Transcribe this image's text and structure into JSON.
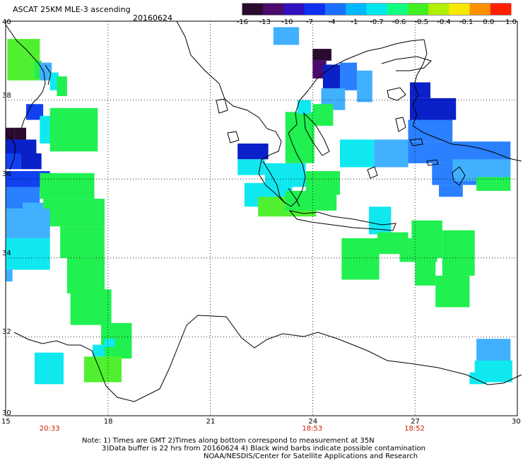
{
  "header": {
    "product": "ASCAT 25KM MLE-3 ascending",
    "date": "20160624"
  },
  "colorbar": {
    "ticks": [
      "-16",
      "-13",
      "-10",
      "-7",
      "-4",
      "-1",
      "-0.7",
      "-0.6",
      "-0.5",
      "-0.4",
      "-0.1",
      "0.0",
      "1.0"
    ],
    "colors": [
      "#2a0a2e",
      "#4b0a6e",
      "#3010c0",
      "#1030f0",
      "#1a70ff",
      "#00b8ff",
      "#00e8ee",
      "#10ff80",
      "#40f020",
      "#b0f000",
      "#f8e800",
      "#ff9000",
      "#ff2000"
    ]
  },
  "axes": {
    "lon_ticks": [
      15,
      18,
      21,
      24,
      27,
      30
    ],
    "lat_ticks": [
      40,
      38,
      36,
      34,
      32,
      30
    ],
    "lon_range": [
      15,
      30
    ],
    "lat_range": [
      30,
      40
    ]
  },
  "pass_times": [
    {
      "lon": 16.3,
      "label": "20:33"
    },
    {
      "lon": 24.0,
      "label": "18:53"
    },
    {
      "lon": 27.0,
      "label": "18:52"
    }
  ],
  "notes": [
    "Note: 1) Times are GMT 2)Times along bottom correspond to measurement at 35N",
    "3)Data buffer is 22 hrs from 20160624 4) Black wind barbs indicate possible contamination",
    "NOAA/NESDIS/Center for Satellite Applications and Research"
  ],
  "palette": {
    "dark": "#2a0a2e",
    "purple": "#4b0a6e",
    "navy": "#0a20c8",
    "blue": "#1040f0",
    "mblue": "#2a80ff",
    "lblue": "#40b0ff",
    "cyan": "#10e8f0",
    "green": "#20f050",
    "lgreen": "#50f030"
  },
  "data_cells": [
    {
      "lon": 15.05,
      "lat": 39.55,
      "w": 0.95,
      "h": 1.05,
      "c": "lgreen"
    },
    {
      "lon": 15.85,
      "lat": 39.0,
      "w": 0.2,
      "h": 0.45,
      "c": "green"
    },
    {
      "lon": 16.0,
      "lat": 38.95,
      "w": 0.35,
      "h": 0.45,
      "c": "lblue"
    },
    {
      "lon": 16.3,
      "lat": 38.7,
      "w": 0.25,
      "h": 0.45,
      "c": "cyan"
    },
    {
      "lon": 16.5,
      "lat": 38.6,
      "w": 0.3,
      "h": 0.5,
      "c": "green"
    },
    {
      "lon": 15.0,
      "lat": 37.3,
      "w": 0.25,
      "h": 0.35,
      "c": "dark"
    },
    {
      "lon": 15.25,
      "lat": 37.3,
      "w": 0.35,
      "h": 0.35,
      "c": "dark"
    },
    {
      "lon": 15.0,
      "lat": 37.0,
      "w": 0.9,
      "h": 0.4,
      "c": "navy"
    },
    {
      "lon": 15.0,
      "lat": 36.65,
      "w": 0.45,
      "h": 0.4,
      "c": "blue"
    },
    {
      "lon": 15.45,
      "lat": 36.65,
      "w": 0.6,
      "h": 0.4,
      "c": "navy"
    },
    {
      "lon": 15.0,
      "lat": 36.2,
      "w": 1.3,
      "h": 0.45,
      "c": "blue"
    },
    {
      "lon": 15.0,
      "lat": 35.8,
      "w": 1.0,
      "h": 0.55,
      "c": "mblue"
    },
    {
      "lon": 15.5,
      "lat": 35.4,
      "w": 0.6,
      "h": 0.6,
      "c": "lblue"
    },
    {
      "lon": 15.6,
      "lat": 37.9,
      "w": 0.5,
      "h": 0.4,
      "c": "blue"
    },
    {
      "lon": 16.0,
      "lat": 37.6,
      "w": 0.5,
      "h": 0.7,
      "c": "cyan"
    },
    {
      "lon": 16.3,
      "lat": 37.8,
      "w": 1.4,
      "h": 1.1,
      "c": "green"
    },
    {
      "lon": 16.0,
      "lat": 36.15,
      "w": 1.6,
      "h": 0.65,
      "c": "green"
    },
    {
      "lon": 16.1,
      "lat": 35.5,
      "w": 1.8,
      "h": 0.7,
      "c": "green"
    },
    {
      "lon": 16.6,
      "lat": 34.8,
      "w": 1.3,
      "h": 0.8,
      "c": "green"
    },
    {
      "lon": 16.8,
      "lat": 34.0,
      "w": 1.1,
      "h": 0.9,
      "c": "green"
    },
    {
      "lon": 16.9,
      "lat": 33.2,
      "w": 1.2,
      "h": 0.9,
      "c": "green"
    },
    {
      "lon": 17.8,
      "lat": 32.35,
      "w": 0.9,
      "h": 0.9,
      "c": "green"
    },
    {
      "lon": 17.3,
      "lat": 31.5,
      "w": 1.1,
      "h": 0.65,
      "c": "lgreen"
    },
    {
      "lon": 17.55,
      "lat": 31.8,
      "w": 0.35,
      "h": 0.3,
      "c": "cyan"
    },
    {
      "lon": 17.9,
      "lat": 31.95,
      "w": 0.3,
      "h": 0.2,
      "c": "cyan"
    },
    {
      "lon": 15.0,
      "lat": 35.25,
      "w": 1.3,
      "h": 0.75,
      "c": "lblue"
    },
    {
      "lon": 15.0,
      "lat": 34.5,
      "w": 1.3,
      "h": 0.8,
      "c": "cyan"
    },
    {
      "lon": 15.0,
      "lat": 33.7,
      "w": 0.2,
      "h": 0.3,
      "c": "lblue"
    },
    {
      "lon": 15.85,
      "lat": 31.6,
      "w": 0.85,
      "h": 0.8,
      "c": "cyan"
    },
    {
      "lon": 22.85,
      "lat": 39.85,
      "w": 0.75,
      "h": 0.45,
      "c": "lblue"
    },
    {
      "lon": 24.0,
      "lat": 39.3,
      "w": 0.55,
      "h": 0.3,
      "c": "dark"
    },
    {
      "lon": 24.0,
      "lat": 39.0,
      "w": 0.4,
      "h": 0.45,
      "c": "purple"
    },
    {
      "lon": 24.3,
      "lat": 38.9,
      "w": 0.5,
      "h": 0.6,
      "c": "navy"
    },
    {
      "lon": 24.8,
      "lat": 38.95,
      "w": 0.5,
      "h": 0.7,
      "c": "mblue"
    },
    {
      "lon": 25.3,
      "lat": 38.75,
      "w": 0.45,
      "h": 0.8,
      "c": "lblue"
    },
    {
      "lon": 24.25,
      "lat": 38.3,
      "w": 0.7,
      "h": 0.55,
      "c": "lblue"
    },
    {
      "lon": 26.85,
      "lat": 38.45,
      "w": 0.6,
      "h": 0.4,
      "c": "navy"
    },
    {
      "lon": 26.85,
      "lat": 38.05,
      "w": 1.35,
      "h": 0.55,
      "c": "navy"
    },
    {
      "lon": 26.8,
      "lat": 37.5,
      "w": 1.3,
      "h": 0.55,
      "c": "mblue"
    },
    {
      "lon": 26.8,
      "lat": 36.95,
      "w": 3.0,
      "h": 0.55,
      "c": "mblue"
    },
    {
      "lon": 27.5,
      "lat": 36.4,
      "w": 1.3,
      "h": 0.55,
      "c": "mblue"
    },
    {
      "lon": 27.7,
      "lat": 35.85,
      "w": 0.7,
      "h": 0.3,
      "c": "mblue"
    },
    {
      "lon": 28.1,
      "lat": 36.5,
      "w": 1.7,
      "h": 0.55,
      "c": "lblue"
    },
    {
      "lon": 28.8,
      "lat": 36.05,
      "w": 1.0,
      "h": 0.35,
      "c": "green"
    },
    {
      "lon": 25.8,
      "lat": 37.0,
      "w": 1.0,
      "h": 0.7,
      "c": "lblue"
    },
    {
      "lon": 24.8,
      "lat": 37.0,
      "w": 1.0,
      "h": 0.7,
      "c": "cyan"
    },
    {
      "lon": 24.0,
      "lat": 37.9,
      "w": 0.6,
      "h": 0.55,
      "c": "green"
    },
    {
      "lon": 23.2,
      "lat": 37.7,
      "w": 0.85,
      "h": 1.3,
      "c": "green"
    },
    {
      "lon": 23.55,
      "lat": 38.0,
      "w": 0.4,
      "h": 0.35,
      "c": "cyan"
    },
    {
      "lon": 21.8,
      "lat": 36.9,
      "w": 0.9,
      "h": 0.4,
      "c": "navy"
    },
    {
      "lon": 21.8,
      "lat": 36.5,
      "w": 0.8,
      "h": 0.4,
      "c": "cyan"
    },
    {
      "lon": 22.6,
      "lat": 36.4,
      "w": 1.2,
      "h": 0.6,
      "c": "cyan"
    },
    {
      "lon": 22.0,
      "lat": 35.9,
      "w": 1.4,
      "h": 0.6,
      "c": "cyan"
    },
    {
      "lon": 22.4,
      "lat": 35.55,
      "w": 1.7,
      "h": 0.5,
      "c": "lgreen"
    },
    {
      "lon": 23.8,
      "lat": 36.2,
      "w": 1.0,
      "h": 0.6,
      "c": "green"
    },
    {
      "lon": 23.2,
      "lat": 35.7,
      "w": 1.5,
      "h": 0.5,
      "c": "green"
    },
    {
      "lon": 25.65,
      "lat": 35.3,
      "w": 0.65,
      "h": 0.7,
      "c": "cyan"
    },
    {
      "lon": 25.9,
      "lat": 34.65,
      "w": 0.9,
      "h": 0.55,
      "c": "green"
    },
    {
      "lon": 26.9,
      "lat": 34.95,
      "w": 0.9,
      "h": 0.95,
      "c": "green"
    },
    {
      "lon": 26.55,
      "lat": 34.5,
      "w": 1.1,
      "h": 0.6,
      "c": "green"
    },
    {
      "lon": 24.85,
      "lat": 34.5,
      "w": 1.1,
      "h": 1.05,
      "c": "green"
    },
    {
      "lon": 27.8,
      "lat": 34.7,
      "w": 0.95,
      "h": 1.15,
      "c": "green"
    },
    {
      "lon": 27.6,
      "lat": 33.55,
      "w": 1.0,
      "h": 0.8,
      "c": "green"
    },
    {
      "lon": 27.0,
      "lat": 34.2,
      "w": 0.6,
      "h": 0.9,
      "c": "green"
    },
    {
      "lon": 28.8,
      "lat": 31.95,
      "w": 1.0,
      "h": 0.6,
      "c": "lblue"
    },
    {
      "lon": 28.75,
      "lat": 31.4,
      "w": 1.1,
      "h": 0.55,
      "c": "cyan"
    },
    {
      "lon": 28.6,
      "lat": 31.1,
      "w": 0.5,
      "h": 0.3,
      "c": "cyan"
    }
  ]
}
